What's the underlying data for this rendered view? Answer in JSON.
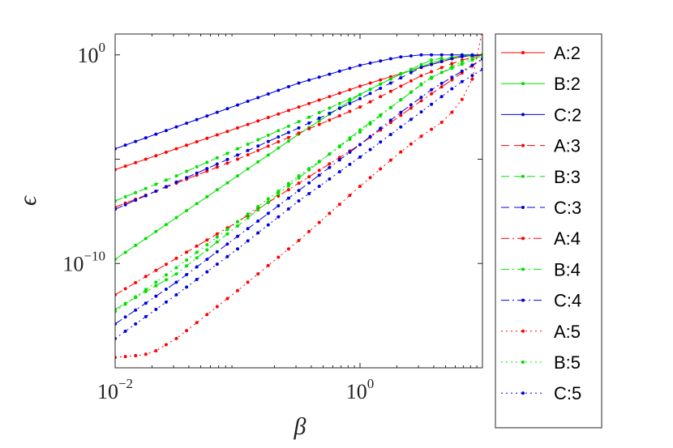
{
  "chart_data": {
    "type": "line",
    "xlabel": "β",
    "ylabel": "ϵ",
    "xscale": "log",
    "yscale": "log",
    "xlim": [
      0.01,
      10
    ],
    "ylim_log10": [
      -15,
      1
    ],
    "xticks": [
      {
        "base": "10",
        "exp": "−2",
        "log10": -2
      },
      {
        "base": "10",
        "exp": "0",
        "log10": 0
      }
    ],
    "yticks": [
      {
        "base": "10",
        "exp": "−10",
        "log10": -10
      },
      {
        "base": "10",
        "exp": "0",
        "log10": 0
      }
    ],
    "grid": false,
    "legend_position": "outside-right",
    "series": [
      {
        "name": "A:2",
        "color": "#ff0000",
        "dash": "solid",
        "x_log10": [
          -2,
          -1,
          0,
          0.5,
          0.8,
          1
        ],
        "y_log10": [
          -5.5,
          -3.5,
          -1.5,
          -0.6,
          -0.1,
          0
        ]
      },
      {
        "name": "B:2",
        "color": "#00e000",
        "dash": "solid",
        "x_log10": [
          -2,
          -1.5,
          -1,
          -0.5,
          0,
          0.3,
          0.6,
          0.8,
          1
        ],
        "y_log10": [
          -9.8,
          -7.8,
          -5.8,
          -3.8,
          -1.9,
          -1.0,
          -0.35,
          -0.05,
          0
        ]
      },
      {
        "name": "C:2",
        "color": "#0000e0",
        "dash": "solid",
        "x_log10": [
          -2,
          -1.5,
          -1,
          -0.5,
          0,
          0.3,
          0.5,
          0.7,
          1
        ],
        "y_log10": [
          -4.5,
          -3.45,
          -2.4,
          -1.35,
          -0.5,
          -0.12,
          0,
          0,
          0
        ]
      },
      {
        "name": "A:3",
        "color": "#ff0000",
        "dash": "dashed",
        "x_log10": [
          -2,
          -1,
          0,
          0.5,
          0.8,
          1
        ],
        "y_log10": [
          -7.3,
          -5.0,
          -2.5,
          -1.0,
          -0.3,
          0
        ]
      },
      {
        "name": "B:3",
        "color": "#00e000",
        "dash": "dashed",
        "x_log10": [
          -2,
          -1.5,
          -1,
          -0.5,
          0,
          0.3,
          0.6,
          1
        ],
        "y_log10": [
          -7.0,
          -5.8,
          -4.5,
          -3.2,
          -1.9,
          -1.0,
          -0.2,
          0
        ]
      },
      {
        "name": "C:3",
        "color": "#0000e0",
        "dash": "dashed",
        "x_log10": [
          -2,
          -1.5,
          -1,
          -0.5,
          0,
          0.2,
          0.5,
          0.8,
          1
        ],
        "y_log10": [
          -7.4,
          -6.1,
          -4.8,
          -3.5,
          -2.1,
          -1.5,
          -0.6,
          -0.1,
          0
        ]
      },
      {
        "name": "A:4",
        "color": "#ff0000",
        "dash": "dashdot",
        "x_log10": [
          -2,
          -1,
          0,
          0.5,
          0.8,
          1
        ],
        "y_log10": [
          -11.5,
          -8.0,
          -4.3,
          -2.2,
          -1.0,
          -0.2
        ]
      },
      {
        "name": "B:4",
        "color": "#00e000",
        "dash": "dashdot",
        "x_log10": [
          -2,
          -1.5,
          -1,
          -0.5,
          0,
          0.3,
          0.6,
          1
        ],
        "y_log10": [
          -12.2,
          -10.5,
          -8.2,
          -5.9,
          -3.6,
          -2.3,
          -1.0,
          -0.05
        ]
      },
      {
        "name": "C:4",
        "color": "#0000e0",
        "dash": "dashdot",
        "x_log10": [
          -2,
          -1.5,
          -1,
          -0.5,
          0,
          0.3,
          0.6,
          1
        ],
        "y_log10": [
          -12.9,
          -10.9,
          -8.7,
          -6.5,
          -4.3,
          -2.9,
          -1.6,
          -0.2
        ]
      },
      {
        "name": "A:5",
        "color": "#ff0000",
        "dash": "dotted",
        "x_log10": [
          -2,
          -1.8,
          -1.7,
          -1.5,
          -1,
          -0.5,
          0,
          0.3,
          0.5,
          0.7,
          0.8,
          0.9,
          0.95,
          1
        ],
        "y_log10": [
          -14.5,
          -14.4,
          -14.3,
          -13.6,
          -11.3,
          -8.9,
          -6.3,
          -4.8,
          -3.9,
          -3.1,
          -2.4,
          -1.6,
          -0.3,
          1.2
        ]
      },
      {
        "name": "B:5",
        "color": "#00e000",
        "dash": "dotted",
        "x_log10": [
          -2,
          -1.5,
          -1,
          -0.5,
          0,
          0.3,
          0.5,
          0.8,
          1
        ],
        "y_log10": [
          -12.3,
          -10.2,
          -8.0,
          -5.8,
          -3.7,
          -2.3,
          -1.4,
          -0.4,
          0
        ]
      },
      {
        "name": "C:5",
        "color": "#0000e0",
        "dash": "dotted",
        "x_log10": [
          -2,
          -1.5,
          -1,
          -0.5,
          0,
          0.3,
          0.6,
          0.8,
          1
        ],
        "y_log10": [
          -13.6,
          -11.5,
          -9.3,
          -7.0,
          -4.9,
          -3.6,
          -2.3,
          -1.4,
          -0.7
        ]
      }
    ]
  }
}
